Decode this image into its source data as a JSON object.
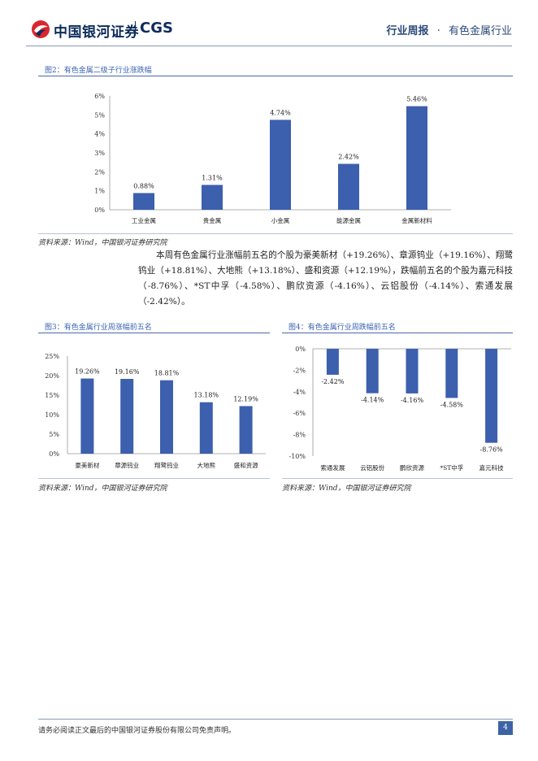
{
  "header": {
    "logo_cn": "中国银河证券",
    "logo_en": "CGS",
    "report_type": "行业周报",
    "separator": "·",
    "industry": "有色金属行业"
  },
  "figures": {
    "fig2": {
      "title": "图2：有色金属二级子行业涨跌幅",
      "source": "资料来源：Wind，中国银河证券研究院"
    },
    "fig3": {
      "title": "图3：有色金属行业周涨幅前五名",
      "source": "资料来源：Wind，中国银河证券研究院"
    },
    "fig4": {
      "title": "图4：有色金属行业周跌幅前五名",
      "source": "资料来源：Wind，中国银河证券研究院"
    }
  },
  "paragraph": "本周有色金属行业涨幅前五名的个股为豪美新材（+19.26%）、章源钨业（+19.16%）、翔鹭钨业（+18.81%）、大地熊（+13.18%）、盛和资源（+12.19%），跌幅前五名的个股为嘉元科技（-8.76%）、*ST中孚（-4.58%）、鹏欣资源（-4.16%）、云铝股份（-4.14%）、索通发展（-2.42%）。",
  "footer": {
    "disclaimer": "请务必阅读正文最后的中国银河证券股份有限公司免责声明。",
    "page": "4"
  },
  "colors": {
    "bar": "#3c5fae",
    "brand": "#0d2d5c",
    "accent": "#3b62b3"
  },
  "chart_data": [
    {
      "id": "fig2",
      "type": "bar",
      "categories": [
        "工业金属",
        "贵金属",
        "小金属",
        "能源金属",
        "金属新材料"
      ],
      "values": [
        0.88,
        1.31,
        4.74,
        2.42,
        5.46
      ],
      "value_labels": [
        "0.88%",
        "1.31%",
        "4.74%",
        "2.42%",
        "5.46%"
      ],
      "yticks": [
        "0%",
        "1%",
        "2%",
        "3%",
        "4%",
        "5%",
        "6%"
      ],
      "ylim": [
        0,
        6
      ],
      "grid": false,
      "legend": "none"
    },
    {
      "id": "fig3",
      "type": "bar",
      "categories": [
        "豪美新材",
        "章源钨业",
        "翔鹭钨业",
        "大地熊",
        "盛和资源"
      ],
      "values": [
        19.26,
        19.16,
        18.81,
        13.18,
        12.19
      ],
      "value_labels": [
        "19.26%",
        "19.16%",
        "18.81%",
        "13.18%",
        "12.19%"
      ],
      "yticks": [
        "0%",
        "5%",
        "10%",
        "15%",
        "20%",
        "25%"
      ],
      "ylim": [
        0,
        25
      ],
      "grid": false,
      "legend": "none"
    },
    {
      "id": "fig4",
      "type": "bar",
      "categories": [
        "索通发展",
        "云铝股份",
        "鹏欣资源",
        "*ST中孚",
        "嘉元科技"
      ],
      "values": [
        -2.42,
        -4.14,
        -4.16,
        -4.58,
        -8.76
      ],
      "value_labels": [
        "-2.42%",
        "-4.14%",
        "-4.16%",
        "-4.58%",
        "-8.76%"
      ],
      "yticks": [
        "0%",
        "-2%",
        "-4%",
        "-6%",
        "-8%",
        "-10%"
      ],
      "ylim": [
        -10,
        0
      ],
      "grid": false,
      "legend": "none"
    }
  ]
}
